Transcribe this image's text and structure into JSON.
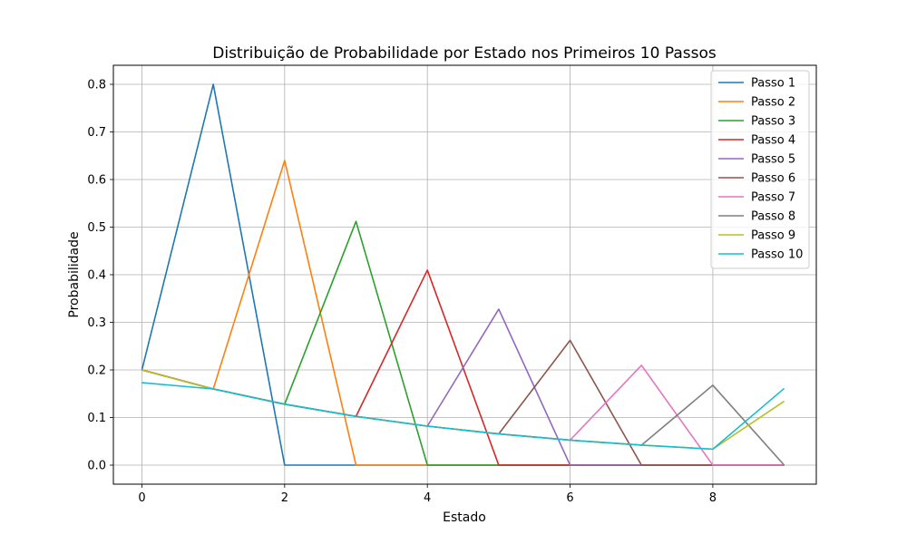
{
  "chart_data": {
    "type": "line",
    "title": "Distribuição de Probabilidade por Estado nos Primeiros 10 Passos",
    "xlabel": "Estado",
    "ylabel": "Probabilidade",
    "xlim": [
      -0.4,
      9.45
    ],
    "ylim": [
      -0.04,
      0.84
    ],
    "x_ticks": [
      0,
      2,
      4,
      6,
      8
    ],
    "y_ticks": [
      0.0,
      0.1,
      0.2,
      0.3,
      0.4,
      0.5,
      0.6,
      0.7,
      0.8
    ],
    "y_tick_labels": [
      "0.0",
      "0.1",
      "0.2",
      "0.3",
      "0.4",
      "0.5",
      "0.6",
      "0.7",
      "0.8"
    ],
    "grid": true,
    "legend_position": "top-right",
    "x": [
      0,
      1,
      2,
      3,
      4,
      5,
      6,
      7,
      8,
      9
    ],
    "series": [
      {
        "name": "Passo 1",
        "color": "#1f77b4",
        "values": [
          0.2,
          0.8,
          0,
          0,
          0,
          0,
          0,
          0,
          0,
          0
        ]
      },
      {
        "name": "Passo 2",
        "color": "#ff7f0e",
        "values": [
          0.2,
          0.16,
          0.64,
          0,
          0,
          0,
          0,
          0,
          0,
          0
        ]
      },
      {
        "name": "Passo 3",
        "color": "#2ca02c",
        "values": [
          0.2,
          0.16,
          0.128,
          0.512,
          0,
          0,
          0,
          0,
          0,
          0
        ]
      },
      {
        "name": "Passo 4",
        "color": "#d62728",
        "values": [
          0.2,
          0.16,
          0.128,
          0.1024,
          0.4096,
          0,
          0,
          0,
          0,
          0
        ]
      },
      {
        "name": "Passo 5",
        "color": "#9467bd",
        "values": [
          0.2,
          0.16,
          0.128,
          0.1024,
          0.08192,
          0.32768,
          0,
          0,
          0,
          0
        ]
      },
      {
        "name": "Passo 6",
        "color": "#8c564b",
        "values": [
          0.2,
          0.16,
          0.128,
          0.1024,
          0.08192,
          0.065536,
          0.262144,
          0,
          0,
          0
        ]
      },
      {
        "name": "Passo 7",
        "color": "#e377c2",
        "values": [
          0.2,
          0.16,
          0.128,
          0.1024,
          0.08192,
          0.065536,
          0.0524288,
          0.2097152,
          0,
          0
        ]
      },
      {
        "name": "Passo 8",
        "color": "#7f7f7f",
        "values": [
          0.2,
          0.16,
          0.128,
          0.1024,
          0.08192,
          0.065536,
          0.0524288,
          0.041943,
          0.167772,
          0
        ]
      },
      {
        "name": "Passo 9",
        "color": "#bcbd22",
        "values": [
          0.2,
          0.16,
          0.128,
          0.1024,
          0.08192,
          0.065536,
          0.0524288,
          0.041943,
          0.033554,
          0.134218
        ]
      },
      {
        "name": "Passo 10",
        "color": "#17becf",
        "values": [
          0.1733,
          0.16,
          0.128,
          0.1024,
          0.08192,
          0.065536,
          0.0524288,
          0.041943,
          0.033554,
          0.161061
        ]
      }
    ]
  }
}
